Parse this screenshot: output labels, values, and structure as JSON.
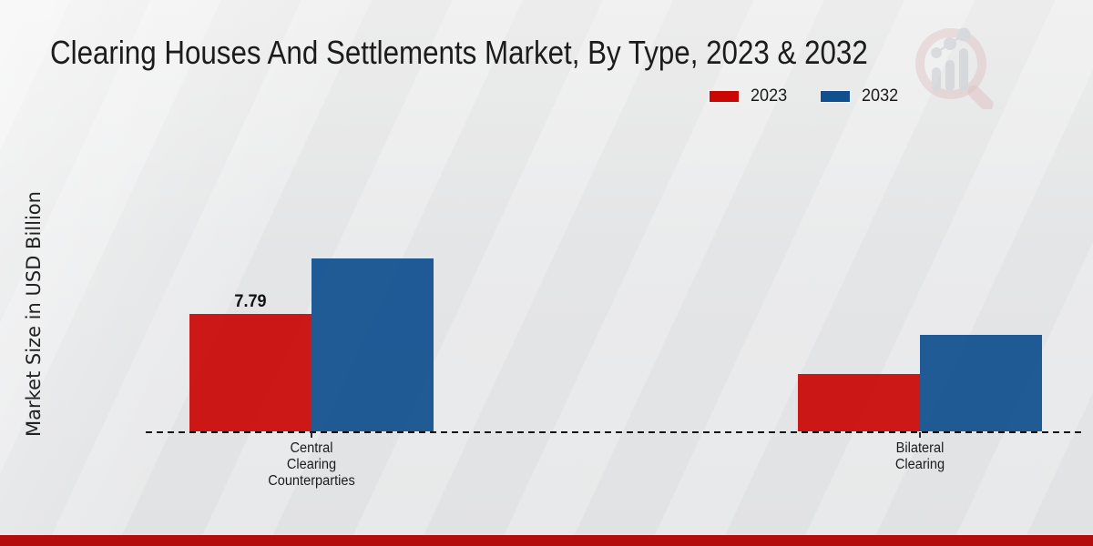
{
  "page": {
    "background_color": "#e7e8e9",
    "footer_color": "#b30d0d"
  },
  "chart_data": {
    "type": "bar",
    "title": "Clearing Houses And Settlements Market, By Type, 2023 & 2032",
    "ylabel": "Market Size in USD Billion",
    "xlabel": "",
    "categories": [
      "Central Clearing Counterparties",
      "Bilateral Clearing"
    ],
    "series": [
      {
        "name": "2023",
        "color": "#c90806",
        "values": [
          7.79,
          3.82
        ],
        "data_labels": [
          "7.79",
          ""
        ]
      },
      {
        "name": "2032",
        "color": "#10508f",
        "values": [
          11.46,
          6.41
        ],
        "data_labels": [
          "",
          ""
        ]
      }
    ],
    "ylim": [
      0,
      12
    ],
    "y_axis_ticks_visible": false,
    "gridlines": false,
    "baseline_style": "dashed",
    "legend_position": "top-right"
  },
  "watermark": {
    "icon": "magnifier-bar-chart-logo",
    "ring_color": "#d9a9ab",
    "bars_color": "#c9cbd0"
  }
}
